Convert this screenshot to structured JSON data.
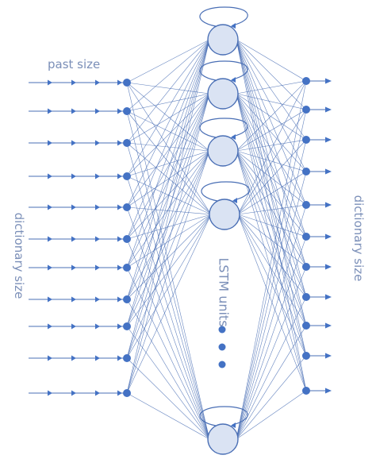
{
  "labels": {
    "past_size": "past size",
    "input_dictionary_size": "dictionary size",
    "output_dictionary_size": "dictionary size",
    "lstm_units": "LSTM units"
  },
  "network": {
    "input_nodes": 11,
    "lstm_units_shown": 5,
    "output_nodes": 11,
    "ellipsis_dots": 3
  },
  "colors": {
    "stroke": "#4a6fb5",
    "node_fill": "#4472c4",
    "lstm_fill": "#dae3f3",
    "label": "#7b8fb8"
  }
}
